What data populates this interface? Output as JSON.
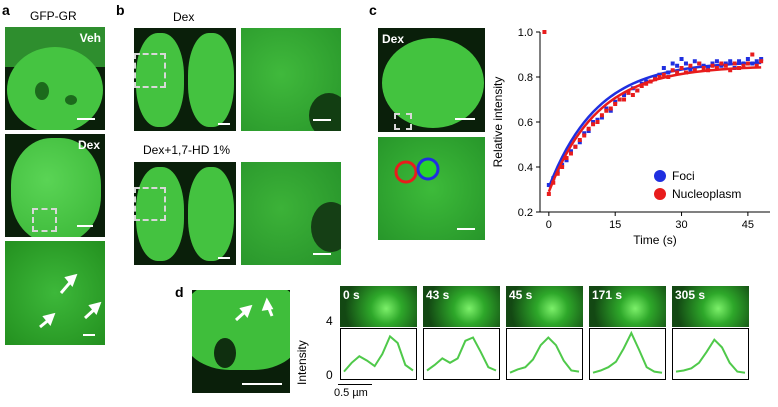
{
  "panel_labels": {
    "a": "a",
    "b": "b",
    "c": "c",
    "d": "d"
  },
  "panel_a": {
    "title": "GFP-GR",
    "top_label": "Veh",
    "mid_label": "Dex"
  },
  "panel_b": {
    "top_label": "Dex",
    "bottom_label": "Dex+1,7-HD 1%"
  },
  "panel_c": {
    "image_label": "Dex"
  },
  "panel_d": {
    "timepoints": [
      "0 s",
      "43 s",
      "45 s",
      "171 s",
      "305 s"
    ],
    "ylabel": "Intensity",
    "ytick": "4",
    "yzero": "0",
    "scale_label": "0.5 µm"
  },
  "chart_data": [
    {
      "type": "scatter",
      "xlabel": "Time (s)",
      "ylabel": "Relative intensity",
      "xlim": [
        -2,
        50
      ],
      "ylim": [
        0.2,
        1.0
      ],
      "xticks": [
        0,
        15,
        30,
        45
      ],
      "yticks": [
        0.2,
        0.4,
        0.6,
        0.8,
        1.0
      ],
      "legend": "bottom-right",
      "series": [
        {
          "name": "Foci",
          "color": "#1f2fe0",
          "x": [
            0,
            1,
            2,
            3,
            4,
            5,
            6,
            7,
            8,
            9,
            10,
            11,
            12,
            13,
            14,
            15,
            16,
            17,
            18,
            19,
            20,
            21,
            22,
            23,
            24,
            25,
            26,
            27,
            28,
            29,
            30,
            31,
            32,
            33,
            34,
            35,
            36,
            37,
            38,
            39,
            40,
            41,
            42,
            43,
            44,
            45,
            46,
            47,
            48
          ],
          "y": [
            0.32,
            0.35,
            0.38,
            0.41,
            0.43,
            0.47,
            0.49,
            0.51,
            0.55,
            0.56,
            0.6,
            0.61,
            0.62,
            0.66,
            0.65,
            0.69,
            0.7,
            0.72,
            0.73,
            0.75,
            0.74,
            0.77,
            0.78,
            0.78,
            0.8,
            0.81,
            0.84,
            0.82,
            0.86,
            0.85,
            0.88,
            0.86,
            0.83,
            0.87,
            0.86,
            0.85,
            0.84,
            0.86,
            0.87,
            0.85,
            0.86,
            0.87,
            0.84,
            0.87,
            0.86,
            0.88,
            0.86,
            0.87,
            0.88
          ]
        },
        {
          "name": "Nucleoplasm",
          "color": "#e81c1c",
          "x": [
            -1,
            0,
            1,
            2,
            3,
            4,
            5,
            6,
            7,
            8,
            9,
            10,
            11,
            12,
            13,
            14,
            15,
            16,
            17,
            18,
            19,
            20,
            21,
            22,
            23,
            24,
            25,
            26,
            27,
            28,
            29,
            30,
            31,
            32,
            33,
            34,
            35,
            36,
            37,
            38,
            39,
            40,
            41,
            42,
            43,
            44,
            45,
            46,
            47,
            48
          ],
          "y": [
            1.0,
            0.28,
            0.33,
            0.37,
            0.4,
            0.44,
            0.46,
            0.49,
            0.52,
            0.54,
            0.57,
            0.59,
            0.6,
            0.63,
            0.65,
            0.66,
            0.68,
            0.7,
            0.7,
            0.73,
            0.72,
            0.74,
            0.76,
            0.77,
            0.78,
            0.79,
            0.8,
            0.81,
            0.8,
            0.83,
            0.82,
            0.84,
            0.82,
            0.85,
            0.83,
            0.86,
            0.84,
            0.83,
            0.85,
            0.84,
            0.86,
            0.85,
            0.83,
            0.86,
            0.84,
            0.85,
            0.86,
            0.9,
            0.85,
            0.87
          ]
        }
      ]
    },
    {
      "type": "line",
      "ylabel": "Intensity",
      "ylim": [
        0,
        4
      ],
      "series": [
        {
          "name": "",
          "values": [
            0.4,
            1.2,
            1.8,
            1.4,
            0.9,
            2.0,
            3.6,
            3.0,
            1.0,
            0.5
          ]
        },
        {
          "name": "",
          "values": [
            0.5,
            1.0,
            1.6,
            1.2,
            1.6,
            3.2,
            3.5,
            2.2,
            0.8,
            0.5
          ]
        },
        {
          "name": "",
          "values": [
            0.3,
            0.6,
            0.8,
            1.5,
            2.8,
            3.5,
            2.8,
            1.4,
            0.5,
            0.4
          ]
        },
        {
          "name": "",
          "values": [
            0.3,
            0.5,
            0.8,
            1.3,
            2.5,
            3.9,
            2.4,
            0.8,
            0.4,
            0.3
          ]
        },
        {
          "name": "",
          "values": [
            0.4,
            0.5,
            0.7,
            1.2,
            2.2,
            3.3,
            2.6,
            1.2,
            0.4,
            0.3
          ]
        }
      ]
    }
  ]
}
